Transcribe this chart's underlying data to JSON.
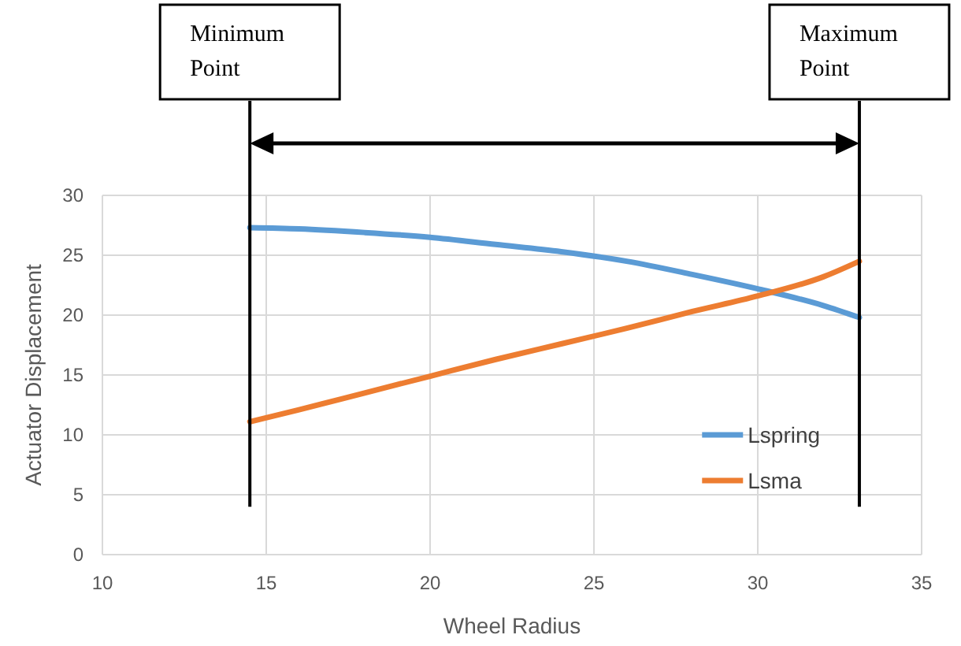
{
  "chart_data": {
    "type": "line",
    "xlabel": "Wheel Radius",
    "ylabel": "Actuator Displacement",
    "xlim": [
      10,
      35
    ],
    "xticks": [
      10,
      15,
      20,
      25,
      30,
      35
    ],
    "ylim": [
      0,
      30
    ],
    "yticks": [
      0,
      5,
      10,
      15,
      20,
      25,
      30
    ],
    "grid": true,
    "legend": "bottom right",
    "marker": "none",
    "line_style": "solid",
    "series": [
      {
        "name": "Lspring",
        "color": "#5b9bd5",
        "x": [
          14.5,
          16,
          18,
          20,
          22,
          24,
          26,
          28,
          30,
          32,
          33.1
        ],
        "values": [
          27.3,
          27.2,
          26.9,
          26.5,
          25.9,
          25.3,
          24.5,
          23.4,
          22.2,
          20.8,
          19.8
        ]
      },
      {
        "name": "Lsma",
        "color": "#ed7d31",
        "x": [
          14.5,
          16,
          18,
          20,
          22,
          24,
          26,
          28,
          30,
          32,
          33.1
        ],
        "values": [
          11.1,
          12.1,
          13.5,
          14.9,
          16.3,
          17.6,
          18.9,
          20.3,
          21.6,
          23.2,
          24.5
        ]
      }
    ],
    "ref_lines": [
      {
        "axis": "x",
        "value": 14.5,
        "label": "Minimum\nPoint",
        "color": "#000000"
      },
      {
        "axis": "x",
        "value": 33.1,
        "label": "Maximum\nPoint",
        "color": "#000000"
      }
    ]
  }
}
